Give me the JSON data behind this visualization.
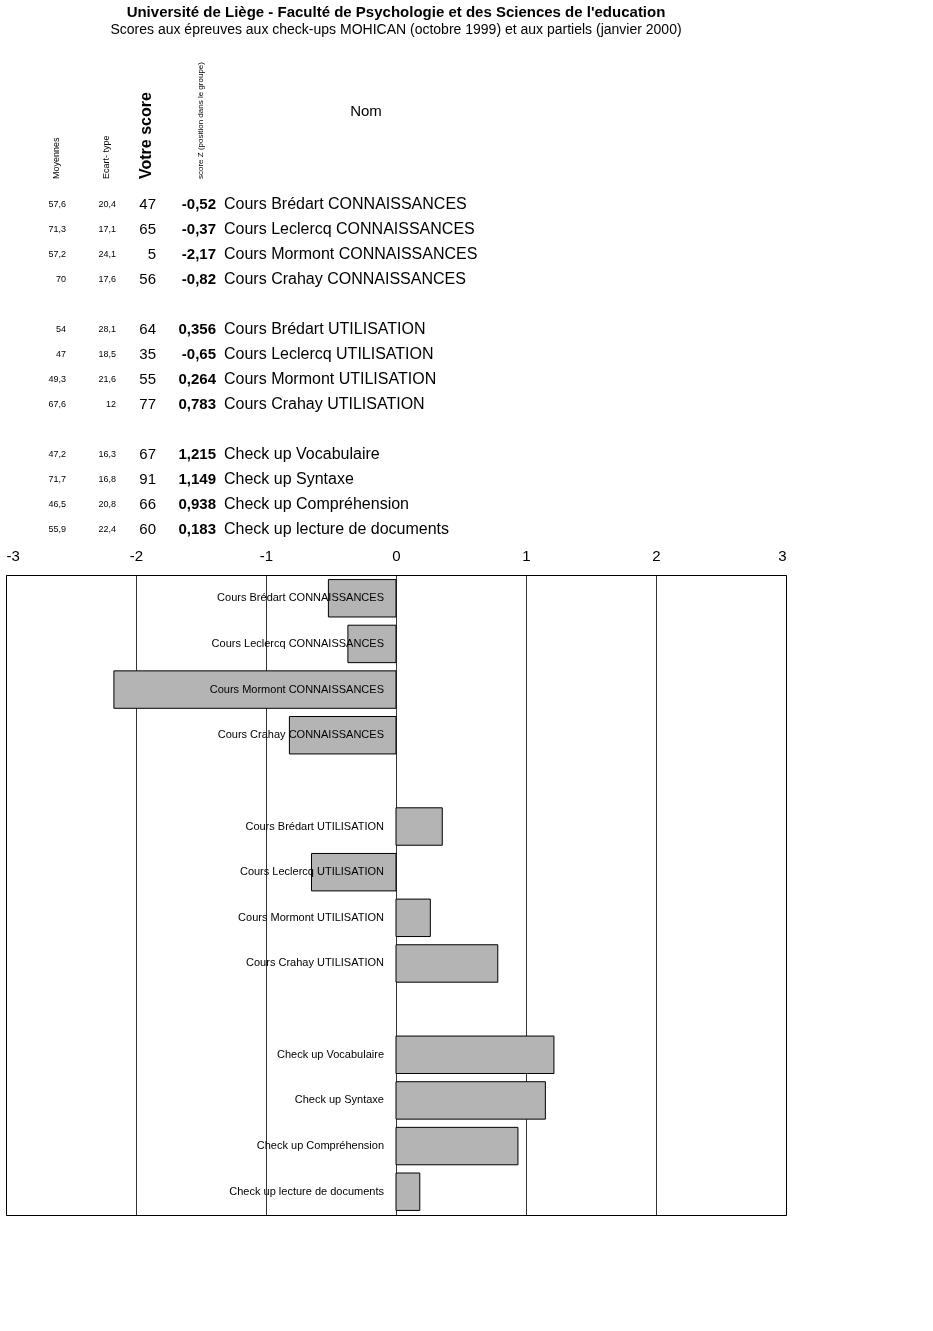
{
  "chart_data": [
    {
      "type": "other",
      "title": "Université de Liège  - Faculté de Psychologie et des Sciences de l'education",
      "subtitle": "Scores aux épreuves aux check-ups MOHICAN (octobre 1999) et aux partiels (janvier 2000)",
      "annotations": [
        "Moyennes",
        "Ecart- type",
        "Votre score",
        "score Z (position dans le groupe)",
        "Nom",
        "57,6 20,4 47 -0,52 Cours Brédart CONNAISSANCES",
        "71,3 17,1 65 -0,37 Cours Leclercq CONNAISSANCES",
        "57,2 24,1 5 -2,17 Cours Mormont CONNAISSANCES",
        "70 17,6 56 -0,82 Cours Crahay CONNAISSANCES",
        "54 28,1 64 0,356 Cours Brédart UTILISATION",
        "47 18,5 35 -0,65 Cours Leclercq UTILISATION",
        "49,3 21,6 55 0,264 Cours Mormont UTILISATION",
        "67,6 12 77 0,783 Cours Crahay UTILISATION",
        "47,2 16,3 67 1,215 Check up Vocabulaire",
        "71,7 16,8 91 1,149 Check up Syntaxe",
        "46,5 20,8 66 0,938 Check up Compréhension",
        "55,9 22,4 60 0,183 Check up lecture de documents"
      ]
    },
    {
      "type": "bar",
      "orientation": "horizontal",
      "categories": [
        "Cours Brédart CONNAISSANCES",
        "Cours Leclercq CONNAISSANCES",
        "Cours Mormont CONNAISSANCES",
        "Cours Crahay CONNAISSANCES",
        null,
        "Cours Brédart UTILISATION",
        "Cours Leclercq UTILISATION",
        "Cours Mormont UTILISATION",
        "Cours Crahay UTILISATION",
        null,
        "Check up Vocabulaire",
        "Check up Syntaxe",
        "Check up Compréhension",
        "Check up lecture de documents"
      ],
      "values": [
        -0.52,
        -0.37,
        -2.17,
        -0.82,
        null,
        0.356,
        -0.65,
        0.264,
        0.783,
        null,
        1.215,
        1.149,
        0.938,
        0.183
      ],
      "color": "#b4b4b4",
      "xlim": [
        -3,
        3
      ],
      "xticks": [
        -3,
        -2,
        -1,
        0,
        1,
        2,
        3
      ],
      "grid": "x"
    }
  ]
}
